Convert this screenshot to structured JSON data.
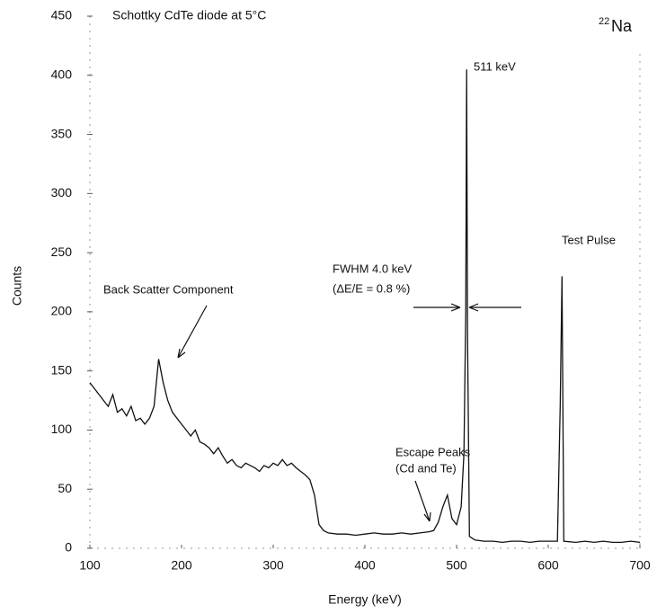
{
  "chart_data": {
    "type": "line",
    "title": "Schottky CdTe diode at 5°C",
    "isotope": {
      "mass": "22",
      "symbol": "Na"
    },
    "x_label": "Energy (keV)",
    "y_label": "Counts",
    "xlim": [
      100,
      700
    ],
    "ylim": [
      0,
      450
    ],
    "xticks": [
      100,
      200,
      300,
      400,
      500,
      600,
      700
    ],
    "yticks": [
      0,
      50,
      100,
      150,
      200,
      250,
      300,
      350,
      400,
      450
    ],
    "annotations": [
      "511 keV",
      "Test Pulse",
      "FWHM 4.0 keV",
      "(ΔE/E = 0.8 %)",
      "Back Scatter Component",
      "Escape Peaks",
      "(Cd and Te)"
    ],
    "series": [
      {
        "color": "#111111",
        "x": [
          100,
          105,
          110,
          115,
          120,
          125,
          130,
          135,
          140,
          145,
          150,
          155,
          160,
          165,
          170,
          175,
          180,
          185,
          190,
          195,
          200,
          205,
          210,
          215,
          220,
          225,
          230,
          235,
          240,
          245,
          250,
          255,
          260,
          265,
          270,
          275,
          280,
          285,
          290,
          295,
          300,
          305,
          310,
          315,
          320,
          325,
          330,
          335,
          340,
          345,
          350,
          355,
          360,
          370,
          380,
          390,
          400,
          410,
          420,
          430,
          440,
          450,
          460,
          470,
          475,
          480,
          485,
          490,
          495,
          500,
          505,
          508,
          510,
          511,
          512,
          514,
          520,
          530,
          540,
          550,
          560,
          570,
          580,
          590,
          600,
          610,
          613,
          615,
          617,
          630,
          640,
          650,
          660,
          670,
          680,
          690,
          700
        ],
        "values": [
          140,
          135,
          130,
          125,
          120,
          130,
          115,
          118,
          112,
          120,
          108,
          110,
          105,
          110,
          120,
          160,
          140,
          125,
          115,
          110,
          105,
          100,
          95,
          100,
          90,
          88,
          85,
          80,
          85,
          78,
          72,
          75,
          70,
          68,
          72,
          70,
          68,
          65,
          70,
          68,
          72,
          70,
          75,
          70,
          72,
          68,
          65,
          62,
          58,
          45,
          20,
          15,
          13,
          12,
          12,
          11,
          12,
          13,
          12,
          12,
          13,
          12,
          13,
          14,
          15,
          22,
          35,
          45,
          25,
          20,
          35,
          80,
          200,
          405,
          180,
          10,
          7,
          6,
          6,
          5,
          6,
          6,
          5,
          6,
          6,
          6,
          120,
          230,
          6,
          5,
          6,
          5,
          6,
          5,
          5,
          6,
          5
        ]
      }
    ]
  }
}
